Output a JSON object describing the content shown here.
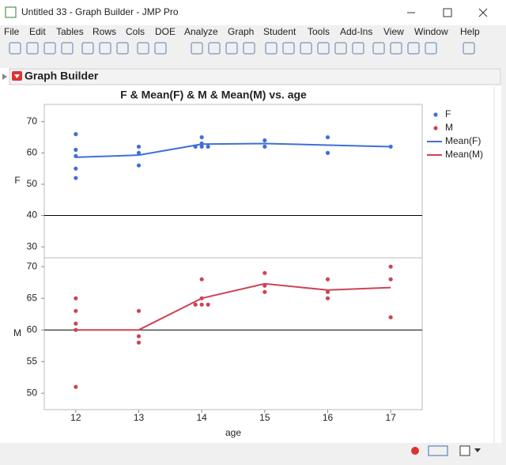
{
  "window": {
    "title": "Untitled 33 - Graph Builder - JMP Pro",
    "menu": [
      "File",
      "Edit",
      "Tables",
      "Rows",
      "Cols",
      "DOE",
      "Analyze",
      "Graph",
      "Student",
      "Tools",
      "Add-Ins",
      "View",
      "Window",
      "Help"
    ]
  },
  "panel": {
    "title": "Graph Builder"
  },
  "chart_data": {
    "type": "scatter",
    "title": "F & Mean(F) & M & Mean(M) vs. age",
    "x_label": "age",
    "x": [
      12,
      13,
      14,
      15,
      16,
      17
    ],
    "xlim": [
      11.5,
      17.5
    ],
    "xticks": [
      12,
      13,
      14,
      15,
      16,
      17
    ],
    "panels": [
      {
        "y_label": "F",
        "ylim": [
          26.5,
          75.5
        ],
        "yticks": [
          30,
          40,
          50,
          60,
          70
        ],
        "reference_line": 40,
        "series": [
          {
            "name": "F",
            "kind": "points",
            "color": "#3f6fd8",
            "x": [
              12,
              12,
              12,
              12,
              12,
              13,
              13,
              13,
              14,
              14,
              13.9,
              14,
              14.1,
              15,
              15,
              16,
              16,
              17
            ],
            "values": [
              66,
              61,
              59,
              55,
              52,
              62,
              60,
              56,
              65,
              63,
              62,
              62,
              62,
              64,
              62,
              65,
              60,
              62
            ]
          },
          {
            "name": "Mean(F)",
            "kind": "line",
            "color": "#3f6fd8",
            "values": [
              58.6,
              59.3,
              62.8,
              63,
              62.5,
              62
            ]
          }
        ]
      },
      {
        "y_label": "M",
        "ylim": [
          47.4,
          71.4
        ],
        "yticks": [
          50,
          55,
          60,
          65,
          70
        ],
        "reference_line": 60,
        "series": [
          {
            "name": "M",
            "kind": "points",
            "color": "#cc4455",
            "x": [
              12,
              12,
              12,
              12,
              12,
              13,
              13,
              13,
              14,
              14,
              13.9,
              14,
              14.1,
              15,
              15,
              15,
              16,
              16,
              16,
              17,
              17,
              17
            ],
            "values": [
              65,
              63,
              61,
              60,
              51,
              63,
              59,
              58,
              68,
              65,
              64,
              64,
              64,
              69,
              67,
              66,
              68,
              66,
              65,
              70,
              68,
              62
            ]
          },
          {
            "name": "Mean(M)",
            "kind": "line",
            "color": "#cc4455",
            "values": [
              60,
              60,
              65,
              67.3,
              66.3,
              66.7
            ]
          }
        ]
      }
    ]
  }
}
